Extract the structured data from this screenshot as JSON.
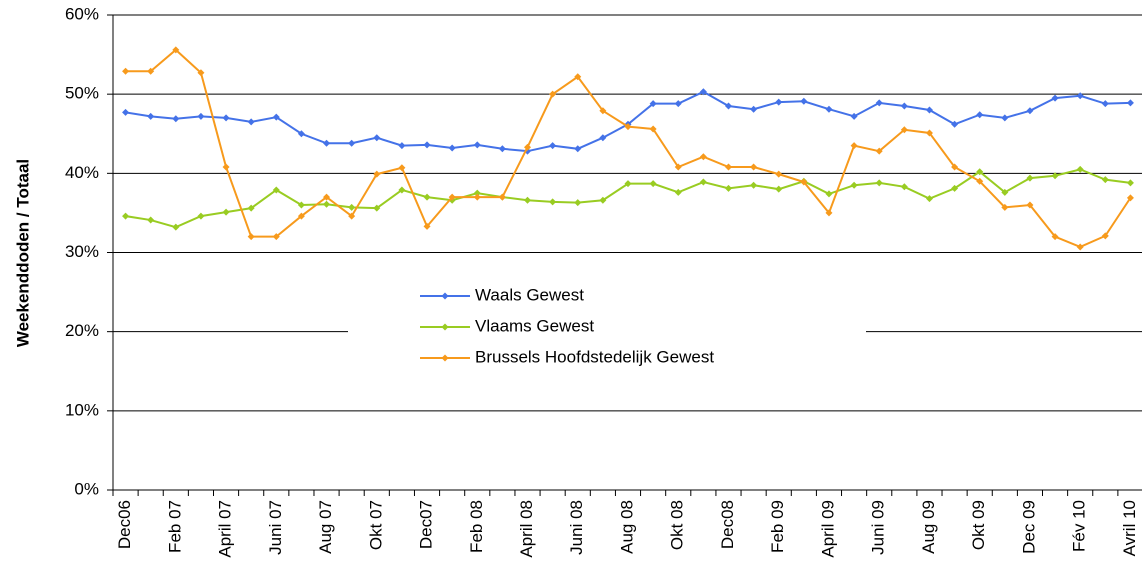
{
  "chart_data": {
    "type": "line",
    "y_label": "Weekenddoden / Totaal",
    "categories": [
      "Dec06",
      null,
      "Feb 07",
      null,
      "April 07",
      null,
      "Juni 07",
      null,
      "Aug 07",
      null,
      "Okt 07",
      null,
      "Dec07",
      null,
      "Feb 08",
      null,
      "April 08",
      null,
      "Juni 08",
      null,
      "Aug 08",
      null,
      "Okt 08",
      null,
      "Dec08",
      null,
      "Feb 09",
      null,
      "April 09",
      null,
      "Juni 09",
      null,
      "Aug 09",
      null,
      "Okt 09",
      null,
      "Dec 09",
      null,
      "Fév 10",
      null,
      "Avril 10"
    ],
    "series": [
      {
        "name": "Waals Gewest",
        "color": "#4472e8",
        "values": [
          47.7,
          47.2,
          46.9,
          47.2,
          47.0,
          46.5,
          47.1,
          45.0,
          43.8,
          43.8,
          44.5,
          43.5,
          43.6,
          43.2,
          43.6,
          43.1,
          42.8,
          43.5,
          43.1,
          44.5,
          46.2,
          48.8,
          48.8,
          50.3,
          48.5,
          48.1,
          49.0,
          49.1,
          48.1,
          47.2,
          48.9,
          48.5,
          48.0,
          46.2,
          47.4,
          47.0,
          47.9,
          49.5,
          49.8,
          48.8,
          48.9
        ]
      },
      {
        "name": "Vlaams Gewest",
        "color": "#99cc22",
        "values": [
          34.6,
          34.1,
          33.2,
          34.6,
          35.1,
          35.6,
          37.9,
          36.0,
          36.1,
          35.7,
          35.6,
          37.9,
          37.0,
          36.6,
          37.5,
          37.0,
          36.6,
          36.4,
          36.3,
          36.6,
          38.7,
          38.7,
          37.6,
          38.9,
          38.1,
          38.5,
          38.0,
          39.0,
          37.4,
          38.5,
          38.8,
          38.3,
          36.8,
          38.1,
          40.2,
          37.6,
          39.4,
          39.7,
          40.5,
          39.2,
          38.8
        ]
      },
      {
        "name": "Brussels Hoofdstedelijk Gewest",
        "color": "#f79a1c",
        "values": [
          52.9,
          52.9,
          55.6,
          52.7,
          40.8,
          32.0,
          32.0,
          34.6,
          37.0,
          34.6,
          39.9,
          40.7,
          33.3,
          37.0,
          37.0,
          37.0,
          43.3,
          50.0,
          52.2,
          47.9,
          45.9,
          45.6,
          40.8,
          42.1,
          40.8,
          40.8,
          39.9,
          38.9,
          35.0,
          43.5,
          42.8,
          45.5,
          45.1,
          40.8,
          39.0,
          35.7,
          36.0,
          32.0,
          30.7,
          32.1,
          36.9
        ]
      }
    ],
    "ylim": [
      0,
      60
    ],
    "yticks": [
      {
        "value": 0,
        "label": "0%"
      },
      {
        "value": 10,
        "label": "10%"
      },
      {
        "value": 20,
        "label": "20%"
      },
      {
        "value": 30,
        "label": "30%"
      },
      {
        "value": 40,
        "label": "40%"
      },
      {
        "value": 50,
        "label": "50%"
      },
      {
        "value": 60,
        "label": "60%"
      }
    ],
    "grid": true
  }
}
